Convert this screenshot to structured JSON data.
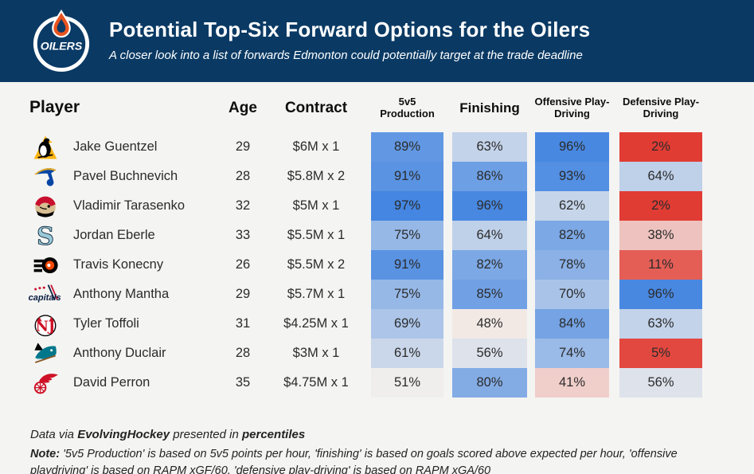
{
  "header": {
    "title": "Potential Top-Six Forward Options for the Oilers",
    "subtitle": "A closer look into a list of forwards Edmonton could potentially target at the trade deadline",
    "logo": "edmonton-oilers-logo",
    "logo_text": "OILERS",
    "bg_color": "#0A3A64"
  },
  "chart_data": {
    "type": "table",
    "columns": [
      "Player",
      "Age",
      "Contract",
      "5v5 Production",
      "Finishing",
      "Offensive Play-Driving",
      "Defensive Play-Driving"
    ],
    "value_format": "percentile %",
    "color_scale": {
      "low": "#E0352C",
      "mid": "#F3F0ED",
      "high": "#397FE0",
      "domain": [
        0,
        50,
        100
      ]
    },
    "rows": [
      {
        "team": "penguins",
        "team_name": "Pittsburgh Penguins",
        "name": "Jake Guentzel",
        "age": 29,
        "contract": "$6M x 1",
        "values": [
          89,
          63,
          96,
          2
        ]
      },
      {
        "team": "blues",
        "team_name": "St. Louis Blues",
        "name": "Pavel Buchnevich",
        "age": 28,
        "contract": "$5.8M x 2",
        "values": [
          91,
          86,
          93,
          64
        ]
      },
      {
        "team": "senators",
        "team_name": "Ottawa Senators",
        "name": "Vladimir Tarasenko",
        "age": 32,
        "contract": "$5M x 1",
        "values": [
          97,
          96,
          62,
          2
        ]
      },
      {
        "team": "kraken",
        "team_name": "Seattle Kraken",
        "name": "Jordan Eberle",
        "age": 33,
        "contract": "$5.5M x 1",
        "values": [
          75,
          64,
          82,
          38
        ]
      },
      {
        "team": "flyers",
        "team_name": "Philadelphia Flyers",
        "name": "Travis Konecny",
        "age": 26,
        "contract": "$5.5M x 2",
        "values": [
          91,
          82,
          78,
          11
        ]
      },
      {
        "team": "capitals",
        "team_name": "Washington Capitals",
        "name": "Anthony Mantha",
        "age": 29,
        "contract": "$5.7M x 1",
        "values": [
          75,
          85,
          70,
          96
        ]
      },
      {
        "team": "devils",
        "team_name": "New Jersey Devils",
        "name": "Tyler Toffoli",
        "age": 31,
        "contract": "$4.25M x 1",
        "values": [
          69,
          48,
          84,
          63
        ]
      },
      {
        "team": "sharks",
        "team_name": "San Jose Sharks",
        "name": "Anthony Duclair",
        "age": 28,
        "contract": "$3M x 1",
        "values": [
          61,
          56,
          74,
          5
        ]
      },
      {
        "team": "redwings",
        "team_name": "Detroit Red Wings",
        "name": "David Perron",
        "age": 35,
        "contract": "$4.75M x 1",
        "values": [
          51,
          80,
          41,
          56
        ]
      }
    ]
  },
  "footer": {
    "credit_prefix": "Data via ",
    "credit_source": "EvolvingHockey",
    "credit_middle": " presented in ",
    "credit_emphasis": "percentiles",
    "note_label": "Note:",
    "note_text": " '5v5 Production' is based on 5v5 points per hour, 'finishing' is based on goals scored above expected per hour, 'offensive playdriving' is based on RAPM xGF/60, 'defensive play-driving' is based on RAPM xGA/60"
  }
}
